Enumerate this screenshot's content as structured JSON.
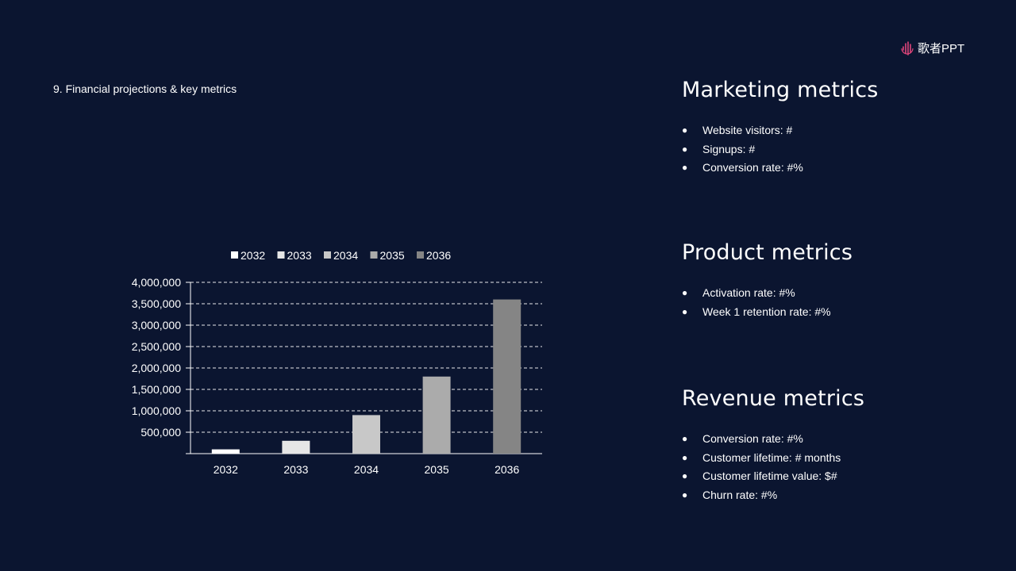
{
  "slide": {
    "title": "9. Financial projections & key metrics",
    "logo_text": "歌者PPT"
  },
  "colors": {
    "background": "#0b1530",
    "text": "#ffffff",
    "logo_accent": "#e0457b"
  },
  "chart_data": {
    "type": "bar",
    "categories": [
      "2032",
      "2033",
      "2034",
      "2035",
      "2036"
    ],
    "series": [
      {
        "name": "2032",
        "values": [
          100000,
          null,
          null,
          null,
          null
        ],
        "color": "#ffffff"
      },
      {
        "name": "2033",
        "values": [
          null,
          300000,
          null,
          null,
          null
        ],
        "color": "#e6e6e6"
      },
      {
        "name": "2034",
        "values": [
          null,
          null,
          900000,
          null,
          null
        ],
        "color": "#c8c8c8"
      },
      {
        "name": "2035",
        "values": [
          null,
          null,
          null,
          1800000,
          null
        ],
        "color": "#ababab"
      },
      {
        "name": "2036",
        "values": [
          null,
          null,
          null,
          null,
          3600000
        ],
        "color": "#858585"
      }
    ],
    "ylim": [
      0,
      4000000
    ],
    "yticks": [
      500000,
      1000000,
      1500000,
      2000000,
      2500000,
      3000000,
      3500000,
      4000000
    ],
    "ytick_labels": [
      "500,000",
      "1,000,000",
      "1,500,000",
      "2,000,000",
      "2,500,000",
      "3,000,000",
      "3,500,000",
      "4,000,000"
    ],
    "grid": true,
    "legend_position": "top"
  },
  "metrics": [
    {
      "title": "Marketing metrics",
      "items": [
        "Website visitors: #",
        "Signups: #",
        "Conversion rate: #%"
      ]
    },
    {
      "title": "Product metrics",
      "items": [
        "Activation rate: #%",
        "Week 1 retention rate: #%"
      ]
    },
    {
      "title": "Revenue metrics",
      "items": [
        "Conversion rate: #%",
        "Customer lifetime: # months",
        "Customer lifetime value: $#",
        "Churn rate: #%"
      ]
    }
  ]
}
